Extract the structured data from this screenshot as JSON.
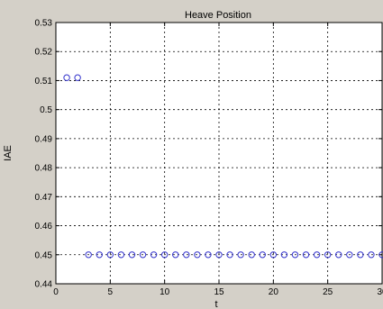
{
  "chart_data": {
    "type": "scatter",
    "title": "Heave Position",
    "xlabel": "t",
    "ylabel": "IAE",
    "xlim": [
      0,
      30
    ],
    "ylim": [
      0.44,
      0.53
    ],
    "xticks": [
      0,
      5,
      10,
      15,
      20,
      25,
      30
    ],
    "yticks": [
      0.44,
      0.45,
      0.46,
      0.47,
      0.48,
      0.49,
      0.5,
      0.51,
      0.52,
      0.53
    ],
    "xtick_labels": [
      "0",
      "5",
      "10",
      "15",
      "20",
      "25",
      "30"
    ],
    "ytick_labels": [
      "0.44",
      "0.45",
      "0.46",
      "0.47",
      "0.48",
      "0.49",
      "0.5",
      "0.51",
      "0.52",
      "0.53"
    ],
    "grid": true,
    "marker": "circle",
    "series": [
      {
        "color": "#3333cc",
        "x": [
          1,
          2,
          3,
          4,
          5,
          6,
          7,
          8,
          9,
          10,
          11,
          12,
          13,
          14,
          15,
          16,
          17,
          18,
          19,
          20,
          21,
          22,
          23,
          24,
          25,
          26,
          27,
          28,
          29,
          30
        ],
        "y": [
          0.511,
          0.511,
          0.45,
          0.45,
          0.45,
          0.45,
          0.45,
          0.45,
          0.45,
          0.45,
          0.45,
          0.45,
          0.45,
          0.45,
          0.45,
          0.45,
          0.45,
          0.45,
          0.45,
          0.45,
          0.45,
          0.45,
          0.45,
          0.45,
          0.45,
          0.45,
          0.45,
          0.45,
          0.45,
          0.45
        ]
      }
    ]
  }
}
